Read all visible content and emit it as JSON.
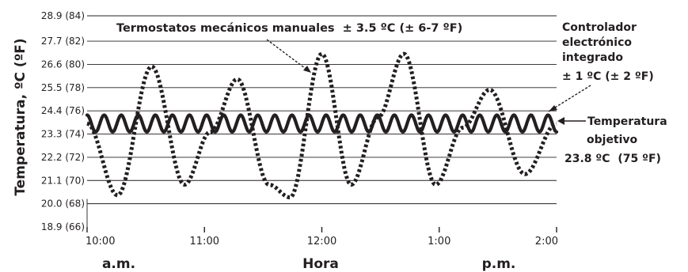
{
  "chart_data": {
    "type": "line",
    "ylabel": "Temperatura, ºC (ºF)",
    "xlabel": "Hora",
    "x_sublabels": [
      "a.m.",
      "p.m."
    ],
    "x_ticks": [
      "10:00",
      "11:00",
      "12:00",
      "1:00",
      "2:00"
    ],
    "y_ticks": [
      "18.9 (66)",
      "20.0 (68)",
      "21.1 (70)",
      "22.2 (72)",
      "23.3 (74)",
      "24.4 (76)",
      "25.5 (78)",
      "26.6 (80)",
      "27.7 (82)",
      "28.9 (84)"
    ],
    "y_tick_values": [
      18.9,
      20.0,
      21.1,
      22.2,
      23.3,
      24.4,
      25.5,
      26.6,
      27.7,
      28.9
    ],
    "ylim": [
      18.9,
      28.9
    ],
    "grid": true,
    "series": [
      {
        "name": "Termostatos mecánicos manuales",
        "style": "dotted",
        "x_unit": "hours after 10:00",
        "x": [
          0,
          0.26,
          0.55,
          0.83,
          1.05,
          1.28,
          1.55,
          1.73,
          2.0,
          2.25,
          2.48,
          2.7,
          2.97,
          3.2,
          3.43,
          3.73,
          4.0
        ],
        "y": [
          23.8,
          20.4,
          26.5,
          20.9,
          23.4,
          25.9,
          20.9,
          20.3,
          27.1,
          20.9,
          24.1,
          27.1,
          20.9,
          23.6,
          25.4,
          21.4,
          23.8
        ]
      },
      {
        "name": "Controlador electrónico integrado",
        "style": "solid",
        "x_unit": "hours after 10:00",
        "center": 23.8,
        "amplitude": 0.4,
        "cycles": 27.5
      }
    ],
    "annotations": {
      "mechanical": "Termostatos mecánicos manuales  ± 3.5 ºC (± 6-7 ºF)",
      "electronic": [
        "Controlador",
        "electrónico",
        "integrado",
        "± 1 ºC (± 2 ºF)"
      ],
      "target": [
        "Temperatura",
        "objetivo",
        "23.8 ºC  (75 ºF)"
      ]
    }
  }
}
